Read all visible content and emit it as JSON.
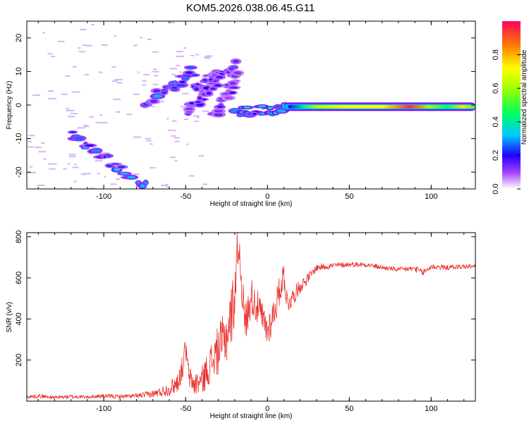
{
  "figure": {
    "title": "KOM5.2026.038.06.45.G11"
  },
  "chart_data": [
    {
      "type": "heatmap",
      "xlabel": "Height of straight line (km)",
      "ylabel": "Frequency (Hz)",
      "xlim": [
        -147,
        127
      ],
      "ylim": [
        -25,
        25
      ],
      "xticks": [
        -100,
        -50,
        0,
        50,
        100
      ],
      "xtick_labels": [
        "-100",
        "-50",
        "0",
        "50",
        "100"
      ],
      "yticks": [
        -20,
        -10,
        0,
        10,
        20
      ],
      "ytick_labels": [
        "-20",
        "-10",
        "0",
        "10",
        "20"
      ],
      "colorbar": {
        "label": "Normalized spectral amplitude",
        "range": [
          0,
          1
        ],
        "ticks": [
          0.0,
          0.2,
          0.4,
          0.6,
          0.8
        ],
        "tick_labels": [
          "0.0",
          "0.2",
          "0.4",
          "0.6",
          "0.8"
        ]
      },
      "features": [
        {
          "x0": -120,
          "f0": -9,
          "x1": -75,
          "f1": -24,
          "amp": 0.25
        },
        {
          "x0": -75,
          "f0": 0,
          "x1": -45,
          "f1": 10,
          "amp": 0.22
        },
        {
          "x0": -45,
          "f0": 5,
          "x1": -20,
          "f1": 12,
          "amp": 0.18
        },
        {
          "x0": -48,
          "f0": -2,
          "x1": -30,
          "f1": 8,
          "amp": 0.17
        },
        {
          "x0": -32,
          "f0": -3,
          "x1": -18,
          "f1": 9,
          "amp": 0.15
        },
        {
          "x0": -18,
          "f0": -2,
          "x1": 10,
          "f1": -1,
          "amp": 0.3
        },
        {
          "x0": 10,
          "f0": -0.5,
          "x1": 127,
          "f1": -0.5,
          "amp": 0.85
        }
      ]
    },
    {
      "type": "line",
      "xlabel": "Height of straight line (km)",
      "ylabel": "SNR (v/v)",
      "xlim": [
        -147,
        127
      ],
      "ylim": [
        0,
        820
      ],
      "xticks": [
        -100,
        -50,
        0,
        50,
        100
      ],
      "xtick_labels": [
        "-100",
        "-50",
        "0",
        "50",
        "100"
      ],
      "yticks": [
        200,
        400,
        600,
        800
      ],
      "ytick_labels": [
        "200",
        "400",
        "600",
        "800"
      ],
      "series": [
        {
          "color": "#e8302e",
          "x": [
            -147,
            -140,
            -130,
            -120,
            -110,
            -100,
            -90,
            -80,
            -70,
            -65,
            -60,
            -55,
            -52,
            -50,
            -48,
            -45,
            -40,
            -35,
            -30,
            -25,
            -22,
            -20,
            -18,
            -16,
            -14,
            -12,
            -10,
            -8,
            -5,
            0,
            5,
            10,
            12,
            15,
            20,
            25,
            30,
            40,
            50,
            60,
            70,
            80,
            90,
            95,
            100,
            110,
            120,
            127
          ],
          "y": [
            20,
            25,
            18,
            22,
            20,
            25,
            22,
            25,
            35,
            45,
            60,
            90,
            160,
            260,
            120,
            80,
            100,
            180,
            250,
            320,
            420,
            520,
            780,
            620,
            380,
            420,
            520,
            480,
            440,
            340,
            460,
            620,
            480,
            500,
            560,
            600,
            650,
            660,
            665,
            665,
            650,
            640,
            645,
            625,
            655,
            650,
            655,
            655
          ],
          "noise": [
            8,
            10,
            8,
            10,
            8,
            10,
            10,
            12,
            18,
            25,
            35,
            50,
            60,
            60,
            55,
            55,
            70,
            95,
            120,
            140,
            150,
            150,
            120,
            110,
            100,
            100,
            90,
            90,
            85,
            85,
            80,
            70,
            60,
            45,
            35,
            25,
            18,
            15,
            12,
            12,
            12,
            12,
            15,
            18,
            15,
            12,
            12,
            12
          ]
        }
      ]
    }
  ]
}
